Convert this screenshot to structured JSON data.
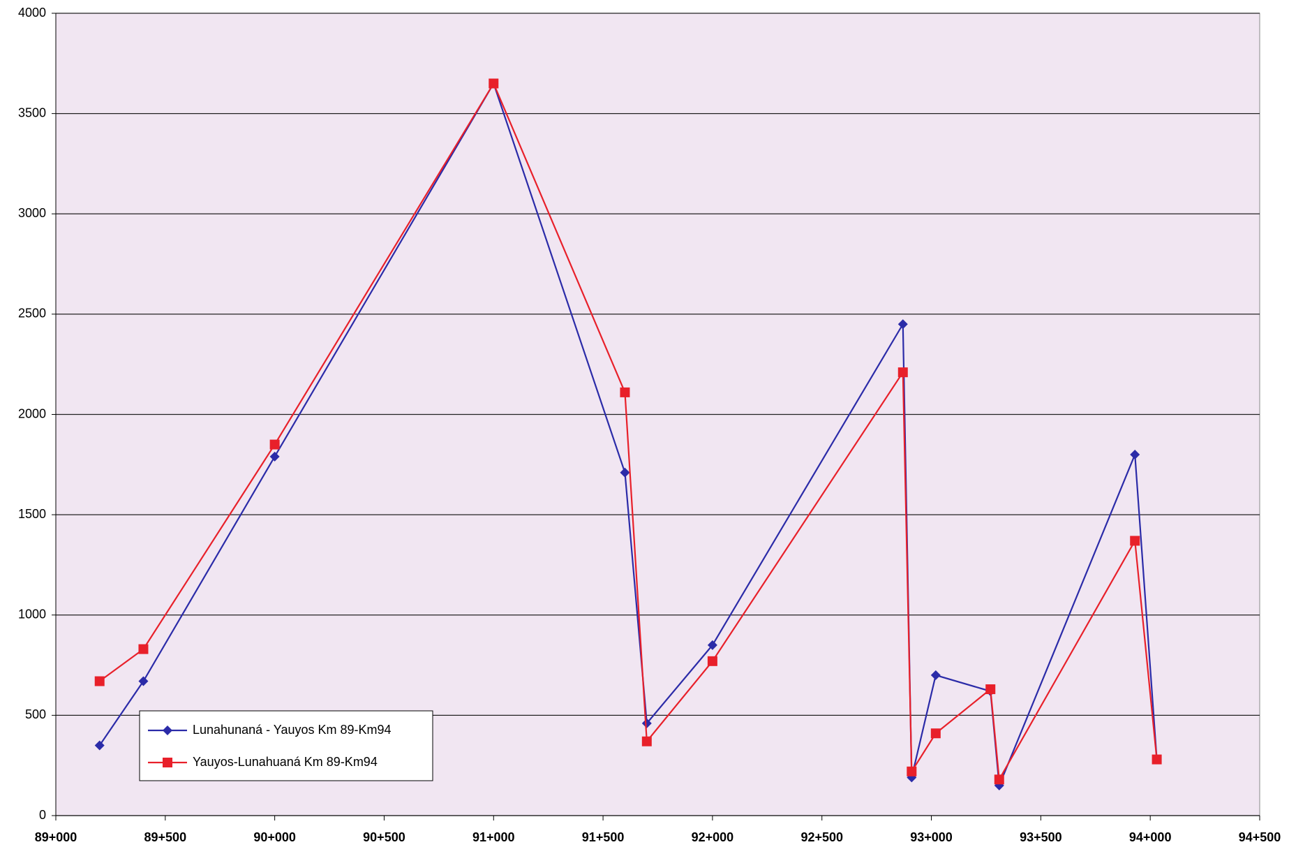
{
  "chart_data": {
    "type": "line",
    "x": [
      89200,
      89400,
      90000,
      91000,
      91600,
      91700,
      92000,
      92870,
      92910,
      93020,
      93270,
      93310,
      93930,
      94030
    ],
    "series": [
      {
        "name": "Lunahunaná - Yauyos Km 89-Km94",
        "color": "#2b2ba8",
        "marker": "diamond",
        "values": [
          350,
          670,
          1790,
          3650,
          1710,
          460,
          850,
          2450,
          190,
          700,
          620,
          150,
          1800,
          280
        ]
      },
      {
        "name": "Yauyos-Lunahuaná Km 89-Km94",
        "color": "#e8202a",
        "marker": "square",
        "values": [
          670,
          830,
          1850,
          3650,
          2110,
          370,
          770,
          2210,
          220,
          410,
          630,
          180,
          1370,
          280
        ]
      }
    ],
    "xlim": [
      89000,
      94500
    ],
    "xticks": [
      {
        "value": 89000,
        "label": "89+000"
      },
      {
        "value": 89500,
        "label": "89+500"
      },
      {
        "value": 90000,
        "label": "90+000"
      },
      {
        "value": 90500,
        "label": "90+500"
      },
      {
        "value": 91000,
        "label": "91+000"
      },
      {
        "value": 91500,
        "label": "91+500"
      },
      {
        "value": 92000,
        "label": "92+000"
      },
      {
        "value": 92500,
        "label": "92+500"
      },
      {
        "value": 93000,
        "label": "93+000"
      },
      {
        "value": 93500,
        "label": "93+500"
      },
      {
        "value": 94000,
        "label": "94+000"
      },
      {
        "value": 94500,
        "label": "94+500"
      }
    ],
    "ylim": [
      0,
      4000
    ],
    "yticks": [
      0,
      500,
      1000,
      1500,
      2000,
      2500,
      3000,
      3500,
      4000
    ],
    "grid": true,
    "legend": "lower-left",
    "background": "#f1e6f2"
  }
}
